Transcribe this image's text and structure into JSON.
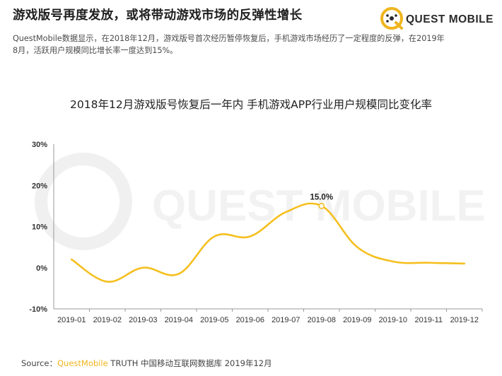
{
  "header": {
    "title": "游戏版号再度发放，或将带动游戏市场的反弹性增长",
    "description_lines": [
      "QuestMobile数据显示，在2018年12月，游戏版号首次经历暂停恢复后，手机游戏市场经历了一定程度的反弹，在2019年",
      "8月，活跃用户规模同比增长率一度达到15%。"
    ]
  },
  "logo": {
    "text": "QUEST MOBILE",
    "icon": "quest-mobile-q-icon"
  },
  "watermark": {
    "text": "QUEST MOBILE"
  },
  "colors": {
    "accent": "#f0b51e",
    "line": "#f5bf1e",
    "axis": "#999999"
  },
  "chart_data": {
    "type": "line",
    "title": "2018年12月游戏版号恢复后一年内 手机游戏APP行业用户规模同比变化率",
    "categories": [
      "2019-01",
      "2019-02",
      "2019-03",
      "2019-04",
      "2019-05",
      "2019-06",
      "2019-07",
      "2019-08",
      "2019-09",
      "2019-10",
      "2019-11",
      "2019-12"
    ],
    "series": [
      {
        "values": [
          2.0,
          -3.4,
          0.0,
          -1.5,
          7.6,
          7.6,
          13.5,
          15.0,
          5.0,
          1.5,
          1.2,
          1.0
        ]
      }
    ],
    "y_ticks": [
      "30%",
      "20%",
      "10%",
      "0%",
      "-10%"
    ],
    "ylim": [
      -10,
      30
    ],
    "annotations": [
      {
        "index": 7,
        "label": "15.0%"
      }
    ],
    "grid": false,
    "smooth": true
  },
  "footer": {
    "prefix": "Source：",
    "brand": "QuestMobile",
    "suffix": " TRUTH 中国移动互联网数据库 2019年12月"
  }
}
